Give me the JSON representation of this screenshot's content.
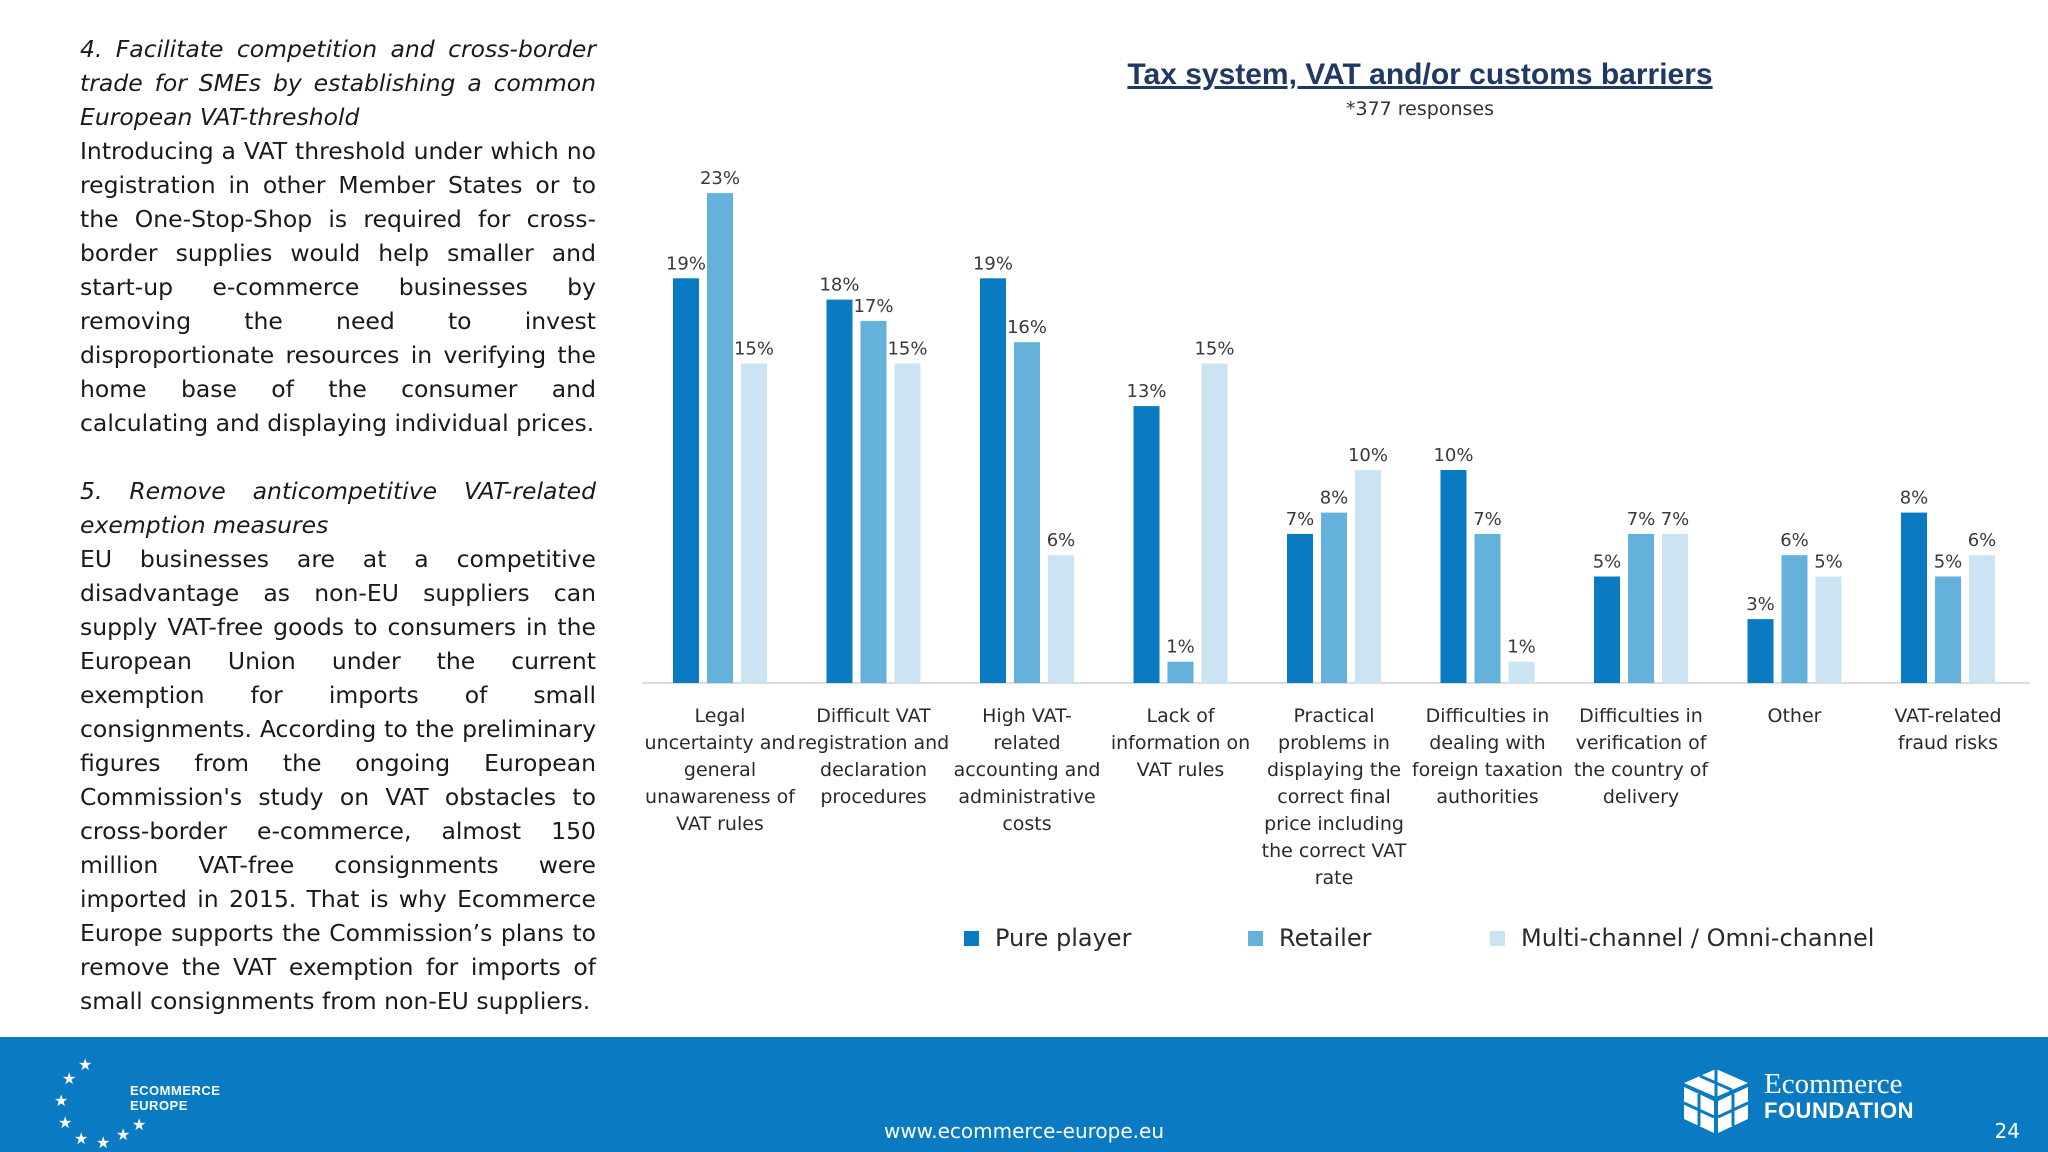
{
  "left_text": {
    "heading4": "4. Facilitate competition and cross-border trade for SMEs by establishing a common European VAT-threshold",
    "para4": "Introducing a VAT threshold under which no registration in other Member States or to the One-Stop-Shop is required for cross-border supplies would help smaller and start-up e-commerce businesses by removing the need to invest disproportionate resources in verifying the home base of the consumer and calculating and displaying individual prices.",
    "heading5": "5. Remove anticompetitive VAT-related exemption measures",
    "para5": "EU businesses are at a competitive disadvantage as non-EU suppliers can supply VAT-free goods to consumers in the European Union under the current exemption for imports of small consignments. According to the preliminary figures from the ongoing European Commission's study on VAT obstacles to cross-border e-commerce, almost 150 million VAT-free consignments were imported in 2015. That is why Ecommerce Europe supports the Commission’s plans to remove the VAT exemption for imports of small consignments from non-EU suppliers."
  },
  "chart_data": {
    "type": "bar",
    "title": "Tax system, VAT and/or customs barriers",
    "subtitle": "*377 responses",
    "categories": [
      "Legal uncertainty and general unawareness of VAT rules",
      "Difficult VAT registration and declaration procedures",
      "High VAT-related accounting and administrative costs",
      "Lack of information on VAT rules",
      "Practical problems in displaying the correct final price including the correct VAT rate",
      "Difficulties in dealing with foreign taxation authorities",
      "Difficulties in verification of the country of delivery",
      "Other",
      "VAT-related fraud risks"
    ],
    "category_lines": [
      [
        "Legal",
        "uncertainty and",
        "general",
        "unawareness of",
        "VAT rules"
      ],
      [
        "Difficult VAT",
        "registration and",
        "declaration",
        "procedures"
      ],
      [
        "High VAT-",
        "related",
        "accounting and",
        "administrative",
        "costs"
      ],
      [
        "Lack of",
        "information on",
        "VAT rules"
      ],
      [
        "Practical",
        "problems in",
        "displaying the",
        "correct final",
        "price including",
        "the correct VAT",
        "rate"
      ],
      [
        "Difficulties in",
        "dealing with",
        "foreign taxation",
        "authorities"
      ],
      [
        "Difficulties in",
        "verification of",
        "the country of",
        "delivery"
      ],
      [
        "Other"
      ],
      [
        "VAT-related",
        "fraud risks"
      ]
    ],
    "series": [
      {
        "name": "Pure player",
        "color": "#0a7bc2",
        "values": [
          19,
          18,
          19,
          13,
          7,
          10,
          5,
          3,
          8
        ]
      },
      {
        "name": "Retailer",
        "color": "#64b1dc",
        "values": [
          23,
          17,
          16,
          1,
          8,
          7,
          7,
          6,
          5
        ]
      },
      {
        "name": "Multi-channel / Omni-channel",
        "color": "#cbe4f3",
        "values": [
          15,
          15,
          6,
          15,
          10,
          1,
          7,
          5,
          6
        ]
      }
    ],
    "value_suffix": "%",
    "ylim": [
      0,
      25
    ],
    "grid": false,
    "legend_position": "bottom"
  },
  "footer": {
    "url": "www.ecommerce-europe.eu",
    "page_number": "24",
    "left_logo_line1": "ECOMMERCE",
    "left_logo_line2": "EUROPE",
    "right_logo_line1": "Ecommerce",
    "right_logo_line2": "FOUNDATION",
    "footer_color": "#0a7bc2"
  }
}
